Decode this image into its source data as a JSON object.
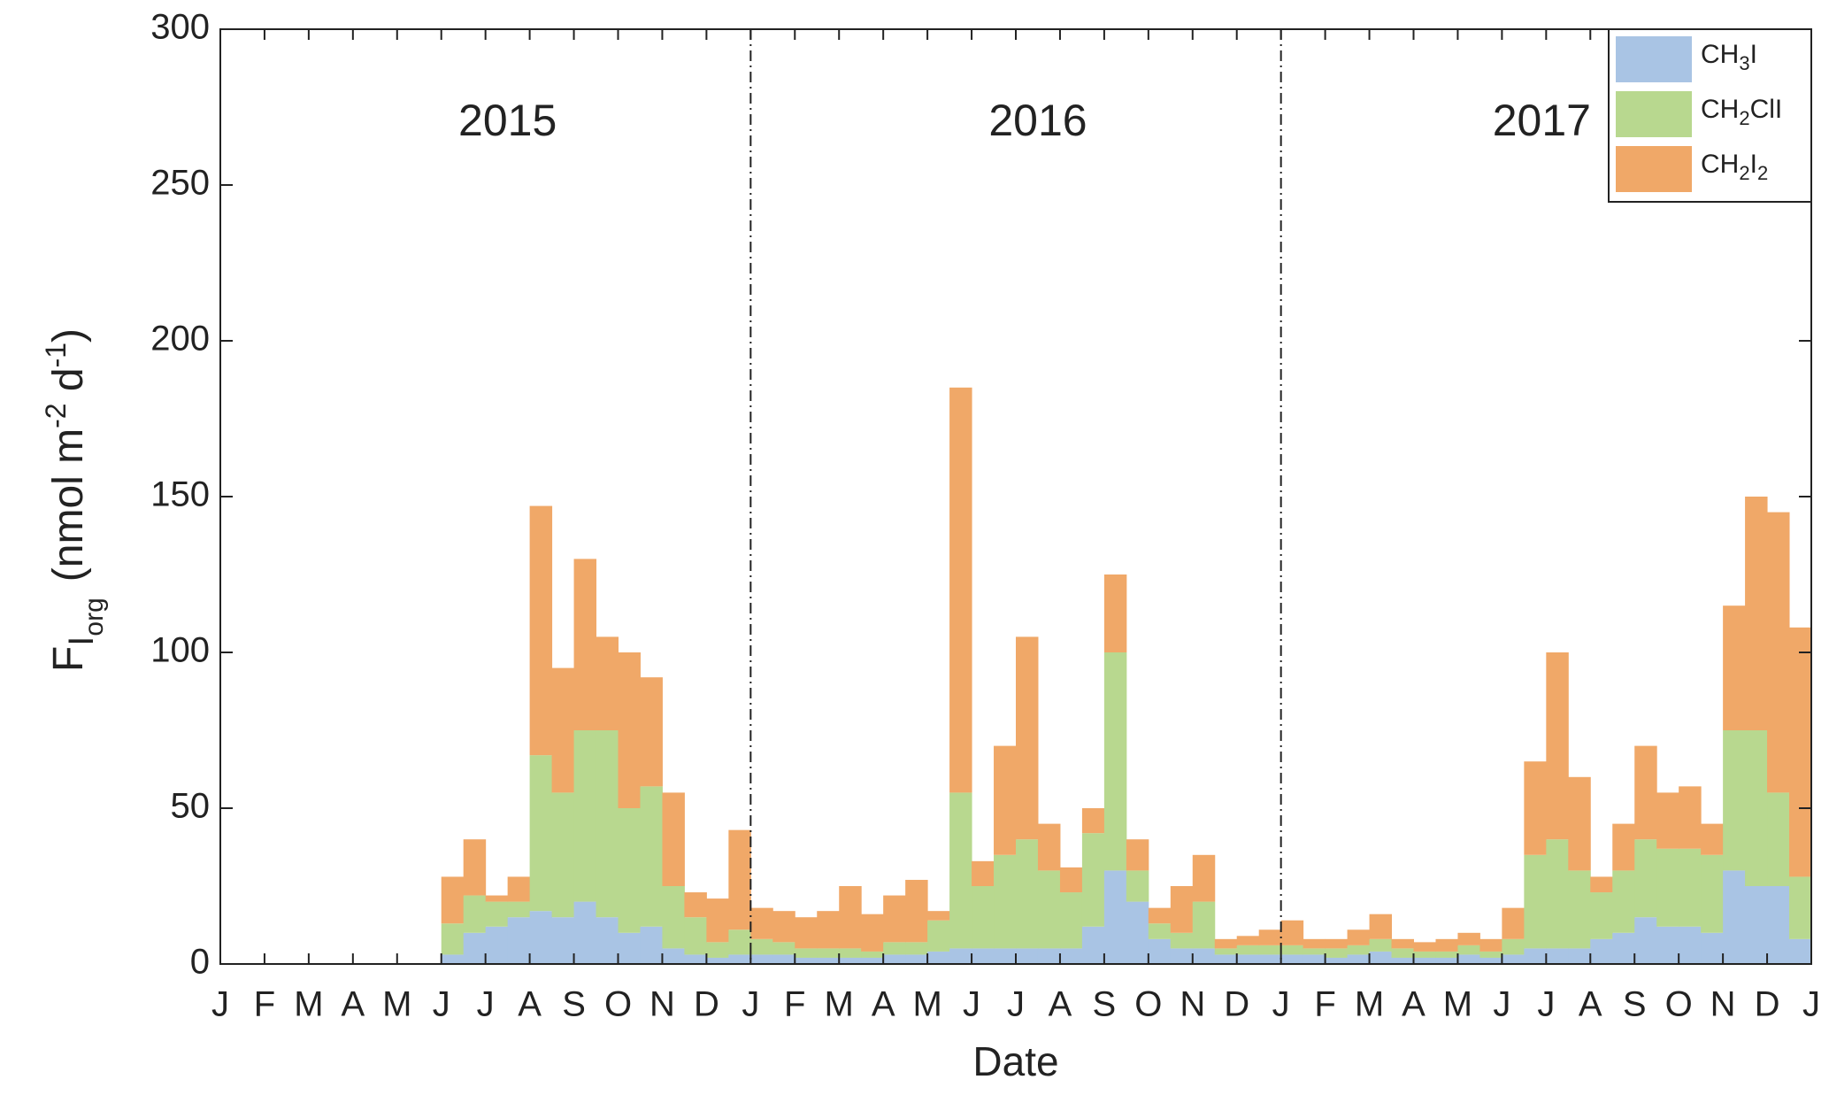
{
  "chart_data": {
    "type": "stacked-histogram",
    "xlabel": "Date",
    "ylabel": [
      "F",
      "I",
      "org",
      "(nmol m",
      "-2",
      " d",
      "-1",
      ")"
    ],
    "xlim": [
      0,
      36
    ],
    "xticks": [
      {
        "value": 0,
        "label": "J"
      },
      {
        "value": 1,
        "label": "F"
      },
      {
        "value": 2,
        "label": "M"
      },
      {
        "value": 3,
        "label": "A"
      },
      {
        "value": 4,
        "label": "M"
      },
      {
        "value": 5,
        "label": "J"
      },
      {
        "value": 6,
        "label": "J"
      },
      {
        "value": 7,
        "label": "A"
      },
      {
        "value": 8,
        "label": "S"
      },
      {
        "value": 9,
        "label": "O"
      },
      {
        "value": 10,
        "label": "N"
      },
      {
        "value": 11,
        "label": "D"
      },
      {
        "value": 12,
        "label": "J"
      },
      {
        "value": 13,
        "label": "F"
      },
      {
        "value": 14,
        "label": "M"
      },
      {
        "value": 15,
        "label": "A"
      },
      {
        "value": 16,
        "label": "M"
      },
      {
        "value": 17,
        "label": "J"
      },
      {
        "value": 18,
        "label": "J"
      },
      {
        "value": 19,
        "label": "A"
      },
      {
        "value": 20,
        "label": "S"
      },
      {
        "value": 21,
        "label": "O"
      },
      {
        "value": 22,
        "label": "N"
      },
      {
        "value": 23,
        "label": "D"
      },
      {
        "value": 24,
        "label": "J"
      },
      {
        "value": 25,
        "label": "F"
      },
      {
        "value": 26,
        "label": "M"
      },
      {
        "value": 27,
        "label": "A"
      },
      {
        "value": 28,
        "label": "M"
      },
      {
        "value": 29,
        "label": "J"
      },
      {
        "value": 30,
        "label": "J"
      },
      {
        "value": 31,
        "label": "A"
      },
      {
        "value": 32,
        "label": "S"
      },
      {
        "value": 33,
        "label": "O"
      },
      {
        "value": 34,
        "label": "N"
      },
      {
        "value": 35,
        "label": "D"
      },
      {
        "value": 36,
        "label": "J"
      }
    ],
    "ylim": [
      0,
      300
    ],
    "yticks": [
      0,
      50,
      100,
      150,
      200,
      250,
      300
    ],
    "year_dividers": [
      12,
      24
    ],
    "annotations": [
      {
        "text": "2015",
        "x": 6.5
      },
      {
        "text": "2016",
        "x": 18.5
      },
      {
        "text": "2017",
        "x": 29.9
      }
    ],
    "legend": "upper right",
    "bins": [
      5,
      5.5,
      6,
      6.5,
      7,
      7.5,
      8,
      8.5,
      9,
      9.5,
      10,
      10.5,
      11,
      11.5,
      12,
      12.5,
      13,
      13.5,
      14,
      14.5,
      15,
      15.5,
      16,
      16.5,
      17,
      17.5,
      18,
      18.5,
      19,
      19.5,
      20,
      20.5,
      21,
      21.5,
      22,
      22.5,
      23,
      23.5,
      24,
      24.5,
      25,
      25.5,
      26,
      26.5,
      27,
      27.5,
      28,
      28.5,
      29,
      29.5,
      30,
      30.5,
      31,
      31.5,
      32,
      32.5,
      33,
      33.5,
      34,
      34.5,
      35,
      35.5,
      36
    ],
    "series": [
      {
        "name": "CH3I",
        "color": "#a9c4e4",
        "values": [
          3,
          10,
          12,
          15,
          17,
          15,
          20,
          15,
          10,
          12,
          5,
          3,
          2,
          3,
          3,
          3,
          2,
          2,
          2,
          2,
          3,
          3,
          4,
          5,
          5,
          5,
          5,
          5,
          5,
          12,
          30,
          20,
          8,
          5,
          5,
          3,
          3,
          3,
          3,
          3,
          2,
          3,
          4,
          2,
          2,
          2,
          3,
          2,
          3,
          5,
          5,
          5,
          8,
          10,
          15,
          12,
          12,
          10,
          30,
          25,
          25,
          8
        ]
      },
      {
        "name": "CH2ClI",
        "color": "#b8d88f",
        "values": [
          10,
          12,
          8,
          5,
          50,
          40,
          55,
          60,
          40,
          45,
          20,
          12,
          5,
          8,
          5,
          4,
          3,
          3,
          3,
          2,
          4,
          4,
          10,
          50,
          20,
          30,
          35,
          25,
          18,
          30,
          70,
          10,
          5,
          5,
          15,
          2,
          3,
          3,
          3,
          2,
          3,
          3,
          4,
          3,
          2,
          2,
          3,
          2,
          5,
          30,
          35,
          25,
          15,
          20,
          25,
          25,
          25,
          25,
          45,
          50,
          30,
          20
        ]
      },
      {
        "name": "CH2I2",
        "color": "#f0a868",
        "values": [
          15,
          18,
          2,
          8,
          80,
          40,
          55,
          30,
          50,
          35,
          30,
          8,
          14,
          32,
          10,
          10,
          10,
          12,
          20,
          12,
          15,
          20,
          3,
          130,
          8,
          35,
          65,
          15,
          8,
          8,
          25,
          10,
          5,
          15,
          15,
          3,
          3,
          5,
          8,
          3,
          3,
          5,
          8,
          3,
          3,
          4,
          4,
          4,
          10,
          30,
          60,
          30,
          5,
          15,
          30,
          18,
          20,
          10,
          40,
          75,
          90,
          80
        ]
      }
    ]
  }
}
